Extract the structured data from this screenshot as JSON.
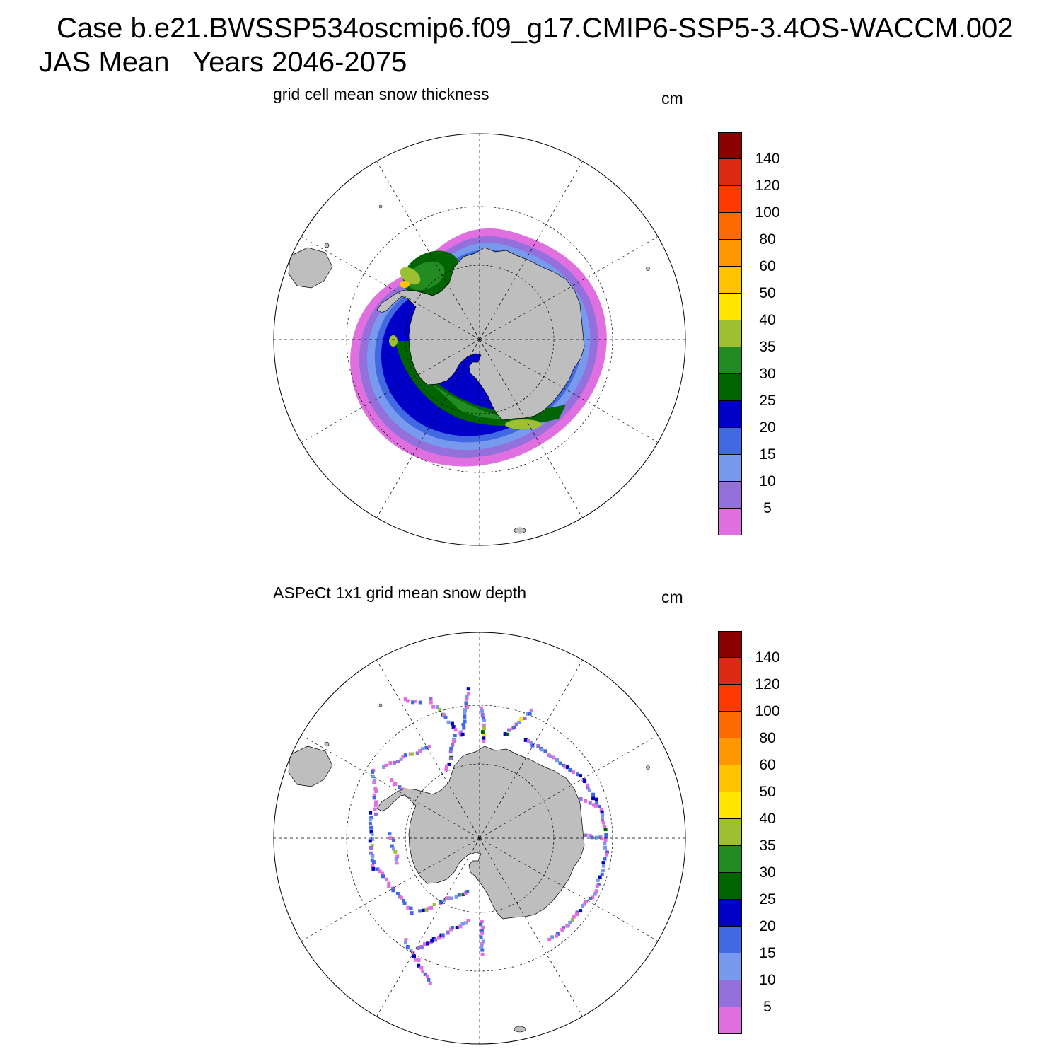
{
  "header": {
    "line1": "Case b.e21.BWSSP534oscmip6.f09_g17.CMIP6-SSP5-3.4OS-WACCM.002",
    "line2": "JAS Mean   Years 2046-2075"
  },
  "panels": [
    {
      "title": "grid cell mean snow thickness",
      "unit": "cm",
      "field": "model"
    },
    {
      "title": "ASPeCt 1x1 grid mean snow depth",
      "unit": "cm",
      "field": "obs"
    }
  ],
  "colorbar": {
    "labels": [
      "140",
      "120",
      "100",
      "80",
      "60",
      "50",
      "40",
      "35",
      "30",
      "25",
      "20",
      "15",
      "10",
      "5"
    ],
    "colors_top_to_bottom": [
      "#8b0000",
      "#dc2b12",
      "#ff3a00",
      "#ff6a00",
      "#ff9800",
      "#ffc300",
      "#ffe600",
      "#9dbf32",
      "#228b22",
      "#006400",
      "#0000c8",
      "#4169e1",
      "#7799ee",
      "#9370db",
      "#e070e0"
    ]
  },
  "colors": {
    "land": "#bebebe",
    "ocean": "#ffffff",
    "grid": "#000000"
  }
}
